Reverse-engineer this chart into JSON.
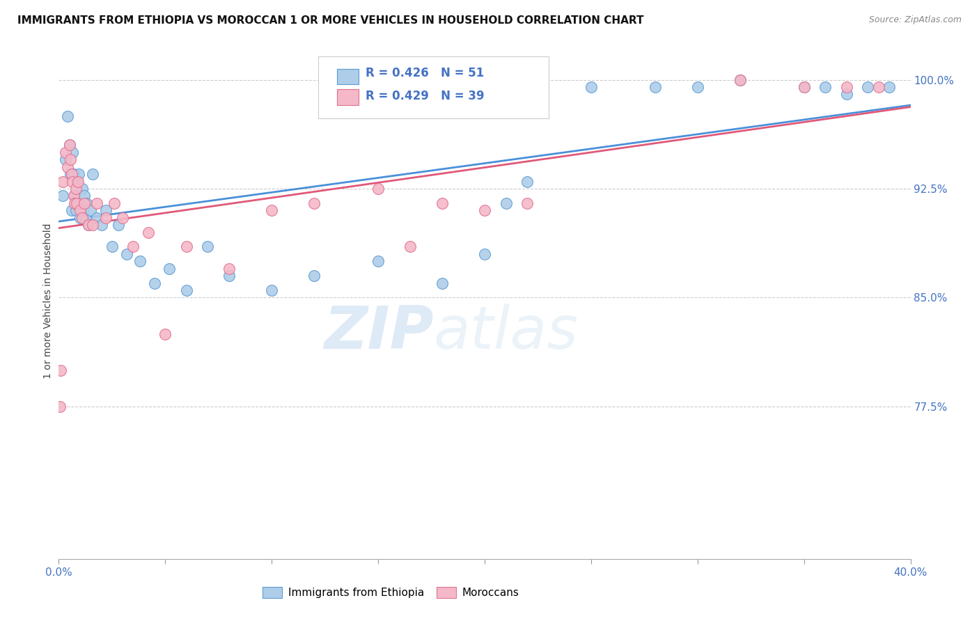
{
  "title": "IMMIGRANTS FROM ETHIOPIA VS MOROCCAN 1 OR MORE VEHICLES IN HOUSEHOLD CORRELATION CHART",
  "source": "Source: ZipAtlas.com",
  "ylabel": "1 or more Vehicles in Household",
  "ytick_labels": [
    "77.5%",
    "85.0%",
    "92.5%",
    "100.0%"
  ],
  "ytick_values": [
    77.5,
    85.0,
    92.5,
    100.0
  ],
  "xmin": 0.0,
  "xmax": 40.0,
  "ymin": 67.0,
  "ymax": 102.5,
  "legend_ethiopia": "Immigrants from Ethiopia",
  "legend_moroccan": "Moroccans",
  "R_ethiopia": "R = 0.426",
  "N_ethiopia": "N = 51",
  "R_moroccan": "R = 0.429",
  "N_moroccan": "N = 39",
  "color_ethiopia_fill": "#AECDE8",
  "color_ethiopia_edge": "#5B9BD5",
  "color_moroccan_fill": "#F4B8C8",
  "color_moroccan_edge": "#E07090",
  "color_line_ethiopia": "#4A90D9",
  "color_line_moroccan": "#E05878",
  "color_text_blue": "#4472C4",
  "color_grid": "#CCCCCC",
  "background_color": "#FFFFFF",
  "watermark_zip": "ZIP",
  "watermark_atlas": "atlas",
  "ethiopia_x": [
    0.2,
    0.3,
    0.4,
    0.5,
    0.55,
    0.6,
    0.65,
    0.7,
    0.75,
    0.8,
    0.85,
    0.9,
    0.95,
    1.0,
    1.05,
    1.1,
    1.15,
    1.2,
    1.25,
    1.3,
    1.4,
    1.5,
    1.6,
    1.8,
    2.0,
    2.2,
    2.5,
    2.8,
    3.2,
    3.8,
    4.5,
    5.2,
    6.0,
    7.0,
    8.0,
    10.0,
    12.0,
    15.0,
    18.0,
    20.0,
    21.0,
    22.0,
    25.0,
    28.0,
    30.0,
    32.0,
    35.0,
    36.0,
    37.0,
    38.0,
    39.0
  ],
  "ethiopia_y": [
    92.0,
    94.5,
    97.5,
    95.5,
    93.5,
    91.0,
    95.0,
    93.5,
    92.0,
    91.0,
    93.0,
    91.5,
    93.5,
    90.5,
    91.5,
    92.5,
    91.0,
    92.0,
    90.5,
    91.5,
    90.0,
    91.0,
    93.5,
    90.5,
    90.0,
    91.0,
    88.5,
    90.0,
    88.0,
    87.5,
    86.0,
    87.0,
    85.5,
    88.5,
    86.5,
    85.5,
    86.5,
    87.5,
    86.0,
    88.0,
    91.5,
    93.0,
    99.5,
    99.5,
    99.5,
    100.0,
    99.5,
    99.5,
    99.0,
    99.5,
    99.5
  ],
  "moroccan_x": [
    0.05,
    0.1,
    0.2,
    0.3,
    0.4,
    0.5,
    0.55,
    0.6,
    0.65,
    0.7,
    0.75,
    0.8,
    0.85,
    0.9,
    1.0,
    1.1,
    1.2,
    1.4,
    1.6,
    1.8,
    2.2,
    2.6,
    3.0,
    3.5,
    4.2,
    5.0,
    6.0,
    8.0,
    10.0,
    12.0,
    15.0,
    16.5,
    18.0,
    20.0,
    22.0,
    32.0,
    35.0,
    37.0,
    38.5
  ],
  "moroccan_y": [
    77.5,
    80.0,
    93.0,
    95.0,
    94.0,
    95.5,
    94.5,
    93.5,
    93.0,
    92.0,
    91.5,
    92.5,
    91.5,
    93.0,
    91.0,
    90.5,
    91.5,
    90.0,
    90.0,
    91.5,
    90.5,
    91.5,
    90.5,
    88.5,
    89.5,
    82.5,
    88.5,
    87.0,
    91.0,
    91.5,
    92.5,
    88.5,
    91.5,
    91.0,
    91.5,
    100.0,
    99.5,
    99.5,
    99.5
  ]
}
